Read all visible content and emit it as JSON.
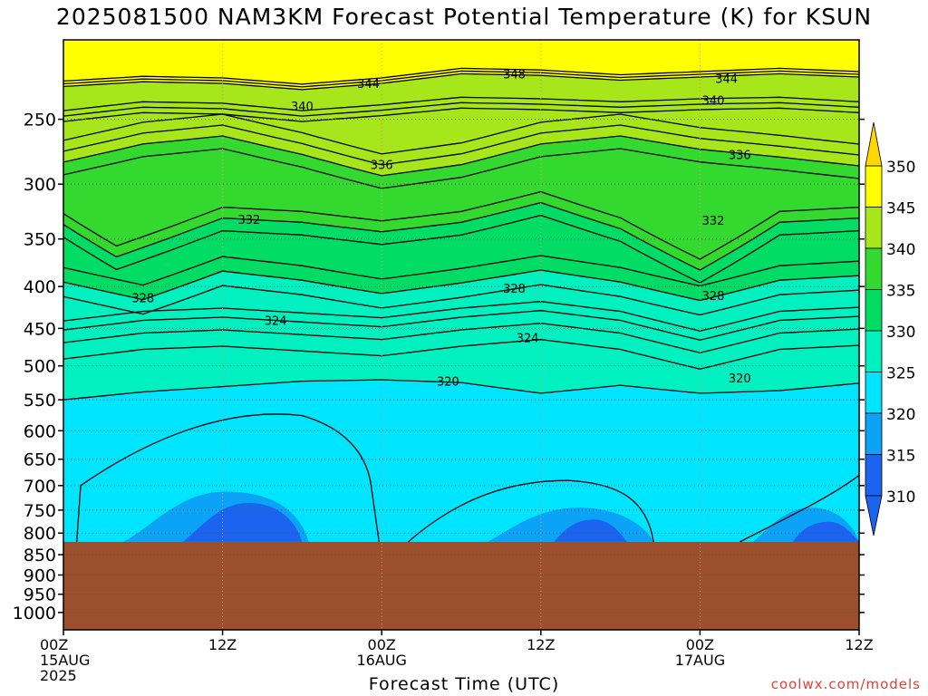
{
  "title": "2025081500 NAM3KM Forecast Potential Temperature (K) for KSUN",
  "xlabel": "Forecast Time (UTC)",
  "credit": "coolwx.com/models",
  "colors": {
    "terrain": "#9c4f2c",
    "bands": [
      "#1a64f0",
      "#0aa3f5",
      "#00e5ff",
      "#00f0c0",
      "#00dc64",
      "#33d92e",
      "#a6e61a",
      "#ffff00",
      "#ffd700"
    ]
  },
  "chart_data": {
    "type": "contour",
    "title": "2025081500 NAM3KM Forecast Potential Temperature (K) for KSUN",
    "xlabel": "Forecast Time (UTC)",
    "ylabel": "",
    "x_ticks": [
      {
        "h": 0,
        "lines": [
          "00Z",
          "15AUG",
          "2025"
        ]
      },
      {
        "h": 12,
        "lines": [
          "12Z"
        ]
      },
      {
        "h": 24,
        "lines": [
          "00Z",
          "16AUG"
        ]
      },
      {
        "h": 36,
        "lines": [
          "12Z"
        ]
      },
      {
        "h": 48,
        "lines": [
          "00Z",
          "17AUG"
        ]
      },
      {
        "h": 60,
        "lines": [
          "12Z"
        ]
      }
    ],
    "xlim": [
      0,
      60
    ],
    "y_ticks": [
      250,
      300,
      350,
      400,
      450,
      500,
      550,
      600,
      650,
      700,
      750,
      800,
      850,
      900,
      950,
      1000
    ],
    "ylim": [
      200,
      1050
    ],
    "y_scale": "log-pressure (hPa)",
    "grid": true,
    "surface_pressure_hPa": 820,
    "colorbar": {
      "labels": [
        "350",
        "345",
        "340",
        "335",
        "330",
        "325",
        "320",
        "315",
        "310"
      ],
      "levels": [
        310,
        315,
        320,
        325,
        330,
        335,
        340,
        345,
        350
      ]
    },
    "isentropes": [
      {
        "theta": 344,
        "p": [
          [
            0,
            228
          ],
          [
            6,
            225
          ],
          [
            12,
            226
          ],
          [
            18,
            230
          ],
          [
            24,
            226
          ],
          [
            30,
            220
          ],
          [
            36,
            221
          ],
          [
            42,
            224
          ],
          [
            48,
            222
          ],
          [
            54,
            220
          ],
          [
            60,
            222
          ]
        ]
      },
      {
        "theta": 340,
        "p": [
          [
            0,
            244
          ],
          [
            6,
            238
          ],
          [
            12,
            239
          ],
          [
            18,
            244
          ],
          [
            24,
            240
          ],
          [
            30,
            235
          ],
          [
            36,
            236
          ],
          [
            42,
            238
          ],
          [
            48,
            236
          ],
          [
            54,
            235
          ],
          [
            60,
            238
          ]
        ]
      },
      {
        "theta": 336,
        "p": [
          [
            0,
            282
          ],
          [
            6,
            268
          ],
          [
            12,
            262
          ],
          [
            18,
            276
          ],
          [
            24,
            293
          ],
          [
            30,
            284
          ],
          [
            36,
            268
          ],
          [
            42,
            262
          ],
          [
            48,
            272
          ],
          [
            54,
            278
          ],
          [
            60,
            285
          ]
        ]
      },
      {
        "theta": 332,
        "p": [
          [
            0,
            336
          ],
          [
            4,
            368
          ],
          [
            12,
            330
          ],
          [
            18,
            334
          ],
          [
            24,
            343
          ],
          [
            30,
            334
          ],
          [
            36,
            316
          ],
          [
            42,
            340
          ],
          [
            48,
            382
          ],
          [
            54,
            334
          ],
          [
            60,
            330
          ]
        ]
      },
      {
        "theta": 328,
        "p": [
          [
            0,
            395
          ],
          [
            6,
            415
          ],
          [
            12,
            383
          ],
          [
            18,
            393
          ],
          [
            24,
            408
          ],
          [
            30,
            396
          ],
          [
            36,
            382
          ],
          [
            42,
            395
          ],
          [
            48,
            416
          ],
          [
            54,
            393
          ],
          [
            60,
            388
          ]
        ]
      },
      {
        "theta": 324,
        "p": [
          [
            0,
            452
          ],
          [
            6,
            440
          ],
          [
            12,
            436
          ],
          [
            18,
            442
          ],
          [
            24,
            448
          ],
          [
            30,
            436
          ],
          [
            36,
            428
          ],
          [
            42,
            440
          ],
          [
            48,
            465
          ],
          [
            54,
            440
          ],
          [
            60,
            435
          ]
        ]
      },
      {
        "theta": 320,
        "p": [
          [
            0,
            550
          ],
          [
            6,
            538
          ],
          [
            12,
            530
          ],
          [
            18,
            522
          ],
          [
            24,
            520
          ],
          [
            30,
            524
          ],
          [
            36,
            540
          ],
          [
            42,
            528
          ],
          [
            48,
            540
          ],
          [
            54,
            536
          ],
          [
            60,
            525
          ]
        ]
      }
    ],
    "contour_labels": [
      {
        "text": "348",
        "h": 34,
        "p": 220
      },
      {
        "text": "344",
        "h": 23,
        "p": 226
      },
      {
        "text": "344",
        "h": 50,
        "p": 223
      },
      {
        "text": "340",
        "h": 18,
        "p": 241
      },
      {
        "text": "340",
        "h": 49,
        "p": 237
      },
      {
        "text": "336",
        "h": 24,
        "p": 284
      },
      {
        "text": "336",
        "h": 51,
        "p": 276
      },
      {
        "text": "332",
        "h": 14,
        "p": 331
      },
      {
        "text": "332",
        "h": 49,
        "p": 332
      },
      {
        "text": "328",
        "h": 6,
        "p": 413
      },
      {
        "text": "328",
        "h": 34,
        "p": 402
      },
      {
        "text": "328",
        "h": 49,
        "p": 410
      },
      {
        "text": "324",
        "h": 16,
        "p": 440
      },
      {
        "text": "324",
        "h": 35,
        "p": 462
      },
      {
        "text": "320",
        "h": 29,
        "p": 522
      },
      {
        "text": "320",
        "h": 51,
        "p": 517
      }
    ]
  }
}
